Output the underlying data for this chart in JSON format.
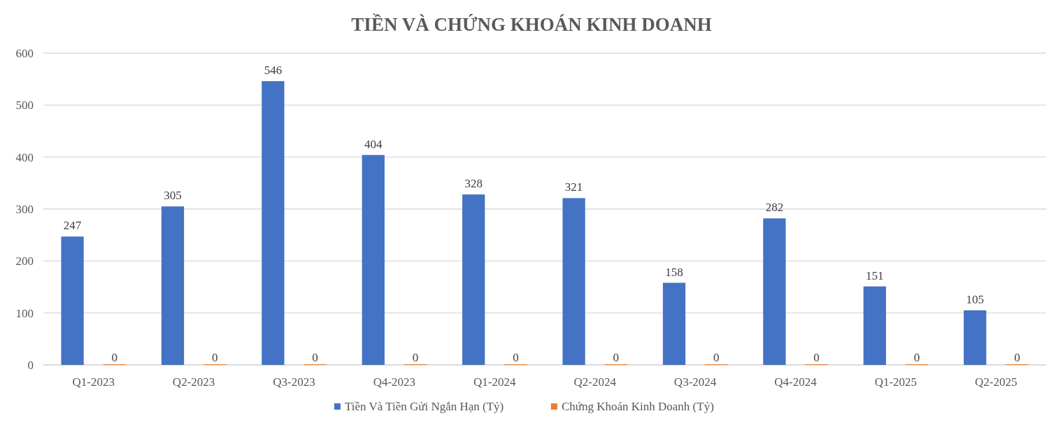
{
  "chart_data": {
    "type": "bar",
    "title": "TIỀN VÀ CHỨNG KHOÁN KINH DOANH",
    "categories": [
      "Q1-2023",
      "Q2-2023",
      "Q3-2023",
      "Q4-2023",
      "Q1-2024",
      "Q2-2024",
      "Q3-2024",
      "Q4-2024",
      "Q1-2025",
      "Q2-2025"
    ],
    "series": [
      {
        "name": "Tiền Và Tiền Gửi Ngắn Hạn (Tỷ)",
        "color": "#4472c4",
        "values": [
          247,
          305,
          546,
          404,
          328,
          321,
          158,
          282,
          151,
          105
        ]
      },
      {
        "name": "Chứng Khoán Kinh Doanh (Tỷ)",
        "color": "#ed7d31",
        "values": [
          0,
          0,
          0,
          0,
          0,
          0,
          0,
          0,
          0,
          0
        ]
      }
    ],
    "ylim": [
      0,
      600
    ],
    "yticks": [
      0,
      100,
      200,
      300,
      400,
      500,
      600
    ],
    "grid": "y",
    "legend": "bottom",
    "data_labels": true
  }
}
